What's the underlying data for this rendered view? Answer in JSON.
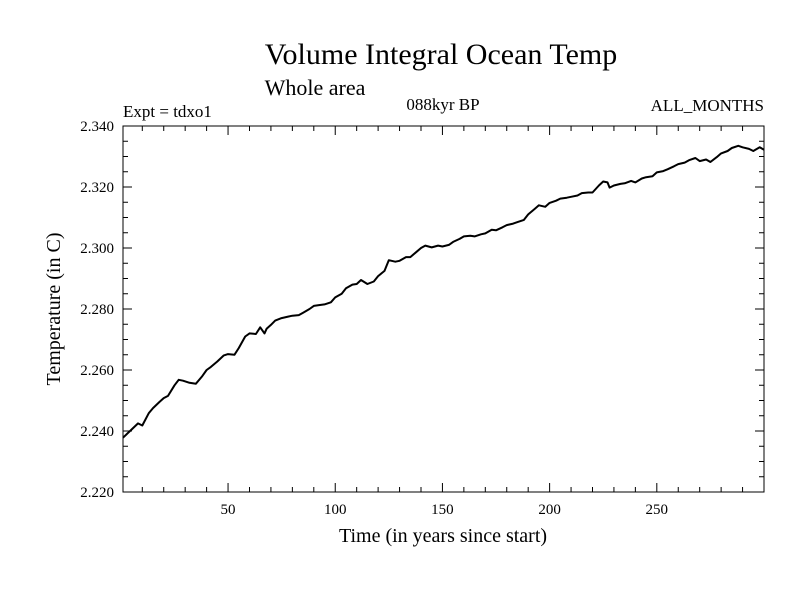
{
  "chart_data": {
    "type": "line",
    "title": "Volume Integral Ocean Temp",
    "subtitle": "Whole area",
    "annotations": {
      "left": "Expt = tdxo1",
      "center": "088kyr BP",
      "right": "ALL_MONTHS"
    },
    "xlabel": "Time (in years since start)",
    "ylabel": "Temperature (in C)",
    "xlim": [
      1,
      300
    ],
    "ylim": [
      2.22,
      2.34
    ],
    "x_ticks": [
      50,
      100,
      150,
      200,
      250
    ],
    "x_tick_labels": [
      "50",
      "100",
      "150",
      "200",
      "250"
    ],
    "y_ticks": [
      2.22,
      2.24,
      2.26,
      2.28,
      2.3,
      2.32,
      2.34
    ],
    "y_tick_labels": [
      "2.220",
      "2.240",
      "2.260",
      "2.280",
      "2.300",
      "2.320",
      "2.340"
    ],
    "grid": false,
    "legend": "none",
    "line_color": "#000000",
    "series": [
      {
        "x": [
          1,
          5,
          8,
          10,
          13,
          15,
          18,
          20,
          22,
          25,
          27,
          29,
          32,
          35,
          38,
          40,
          42,
          45,
          48,
          50,
          53,
          55,
          58,
          60,
          63,
          65,
          67,
          68,
          70,
          72,
          75,
          78,
          80,
          83,
          85,
          88,
          90,
          92,
          95,
          98,
          100,
          103,
          105,
          108,
          110,
          112,
          115,
          118,
          120,
          123,
          125,
          128,
          130,
          133,
          135,
          138,
          140,
          142,
          145,
          148,
          150,
          153,
          155,
          158,
          160,
          163,
          165,
          168,
          170,
          173,
          175,
          178,
          180,
          183,
          185,
          188,
          190,
          193,
          195,
          198,
          200,
          203,
          205,
          208,
          210,
          213,
          215,
          218,
          220,
          223,
          225,
          227,
          228,
          230,
          233,
          235,
          238,
          240,
          243,
          245,
          248,
          250,
          253,
          255,
          258,
          260,
          263,
          265,
          268,
          270,
          273,
          275,
          278,
          280,
          283,
          285,
          288,
          290,
          293,
          295,
          298,
          300
        ],
        "y": [
          2.2378,
          2.2405,
          2.2425,
          2.2418,
          2.2458,
          2.2475,
          2.2495,
          2.2508,
          2.2515,
          2.255,
          2.2568,
          2.2565,
          2.2558,
          2.2555,
          2.258,
          2.26,
          2.261,
          2.2628,
          2.2648,
          2.2652,
          2.265,
          2.2672,
          2.271,
          2.272,
          2.2718,
          2.274,
          2.272,
          2.2735,
          2.2748,
          2.2762,
          2.277,
          2.2775,
          2.2778,
          2.278,
          2.2788,
          2.28,
          2.281,
          2.2812,
          2.2815,
          2.2822,
          2.2838,
          2.285,
          2.2868,
          2.288,
          2.2882,
          2.2895,
          2.2882,
          2.289,
          2.2908,
          2.2925,
          2.296,
          2.2955,
          2.2958,
          2.297,
          2.297,
          2.2988,
          2.3,
          2.3008,
          2.3002,
          2.3008,
          2.3005,
          2.301,
          2.302,
          2.303,
          2.3038,
          2.304,
          2.3038,
          2.3045,
          2.3048,
          2.306,
          2.3058,
          2.3068,
          2.3075,
          2.308,
          2.3085,
          2.3092,
          2.311,
          2.3128,
          2.314,
          2.3135,
          2.3148,
          2.3155,
          2.3162,
          2.3165,
          2.3168,
          2.3172,
          2.318,
          2.3182,
          2.3182,
          2.3205,
          2.3218,
          2.3215,
          2.3198,
          2.3205,
          2.321,
          2.3212,
          2.322,
          2.3215,
          2.3228,
          2.3232,
          2.3235,
          2.3248,
          2.3252,
          2.3258,
          2.3268,
          2.3275,
          2.328,
          2.3288,
          2.3295,
          2.3285,
          2.329,
          2.3282,
          2.3298,
          2.331,
          2.3318,
          2.3328,
          2.3335,
          2.333,
          2.3325,
          2.3318,
          2.333,
          2.3322
        ]
      }
    ]
  }
}
